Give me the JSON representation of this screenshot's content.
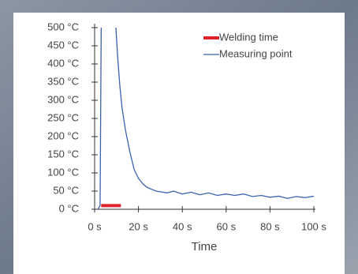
{
  "chart_data": {
    "type": "line",
    "xlabel": "Time",
    "xlim": [
      0,
      100
    ],
    "xticks": [
      {
        "value": 0,
        "label": "0 s"
      },
      {
        "value": 20,
        "label": "20 s"
      },
      {
        "value": 40,
        "label": "40 s"
      },
      {
        "value": 60,
        "label": "60 s"
      },
      {
        "value": 80,
        "label": "80 s"
      },
      {
        "value": 100,
        "label": "100 s"
      }
    ],
    "ylim": [
      0,
      500
    ],
    "yticks": [
      {
        "value": 0,
        "label": "0 °C"
      },
      {
        "value": 50,
        "label": "50 °C"
      },
      {
        "value": 100,
        "label": "100 °C"
      },
      {
        "value": 150,
        "label": "150 °C"
      },
      {
        "value": 200,
        "label": "200 °C"
      },
      {
        "value": 250,
        "label": "250 °C"
      },
      {
        "value": 300,
        "label": "300 °C"
      },
      {
        "value": 350,
        "label": "350 °C"
      },
      {
        "value": 400,
        "label": "400 °C"
      },
      {
        "value": 450,
        "label": "450 °C"
      },
      {
        "value": 500,
        "label": "500 °C"
      }
    ],
    "legend": "upper right",
    "series": [
      {
        "name": "Welding time",
        "color": "#e0202a",
        "width": 4,
        "x": [
          3,
          12
        ],
        "values": [
          10,
          10
        ]
      },
      {
        "name": "Measuring point",
        "color": "#3a62b0",
        "width": 1.3,
        "x": [
          1.5,
          2.5,
          3,
          6,
          9.7,
          10.5,
          11.5,
          12.5,
          14,
          16,
          18,
          20,
          22,
          24,
          26,
          28,
          30,
          33,
          36,
          40,
          44,
          48,
          52,
          56,
          60,
          64,
          68,
          72,
          76,
          80,
          84,
          88,
          92,
          96,
          100
        ],
        "values": [
          0,
          10,
          500,
          null,
          500,
          420,
          340,
          280,
          220,
          160,
          110,
          85,
          70,
          60,
          55,
          50,
          48,
          45,
          50,
          42,
          47,
          40,
          45,
          38,
          42,
          38,
          42,
          35,
          38,
          33,
          36,
          30,
          35,
          32,
          36
        ]
      }
    ]
  }
}
